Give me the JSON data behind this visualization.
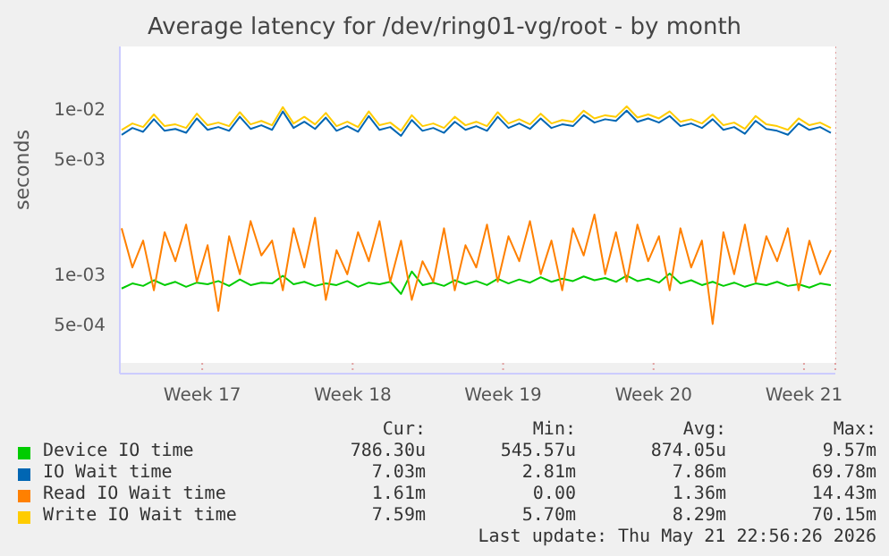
{
  "chart_data": {
    "type": "line",
    "title": "Average latency for /dev/ring01-vg/root - by month",
    "ylabel": "seconds",
    "log": "y",
    "grid": true,
    "legend": "bottom",
    "marker": "none",
    "line_style": "solid",
    "xlim": [
      "2026-04-18T16:00",
      "2026-05-21T23:00"
    ],
    "xticks": [
      {
        "value": "2026-04-22T12:00",
        "label": "Week 17"
      },
      {
        "value": "2026-04-29T12:00",
        "label": "Week 18"
      },
      {
        "value": "2026-05-06T12:00",
        "label": "Week 19"
      },
      {
        "value": "2026-05-13T12:00",
        "label": "Week 20"
      },
      {
        "value": "2026-05-20T12:00",
        "label": "Week 21"
      }
    ],
    "ylim": [
      0.00025,
      0.024
    ],
    "yticks": [
      {
        "value": 0.0005,
        "label": "5e-04"
      },
      {
        "value": 0.001,
        "label": "1e-03"
      },
      {
        "value": 0.005,
        "label": "5e-03"
      },
      {
        "value": 0.01,
        "label": "1e-02"
      }
    ],
    "x": [
      "2026-04-18T18:00",
      "2026-04-19T06:00",
      "2026-04-19T18:00",
      "2026-04-20T06:00",
      "2026-04-20T18:00",
      "2026-04-21T06:00",
      "2026-04-21T18:00",
      "2026-04-22T06:00",
      "2026-04-22T18:00",
      "2026-04-23T06:00",
      "2026-04-23T18:00",
      "2026-04-24T06:00",
      "2026-04-24T18:00",
      "2026-04-25T06:00",
      "2026-04-25T18:00",
      "2026-04-26T06:00",
      "2026-04-26T18:00",
      "2026-04-27T06:00",
      "2026-04-27T18:00",
      "2026-04-28T06:00",
      "2026-04-28T18:00",
      "2026-04-29T06:00",
      "2026-04-29T18:00",
      "2026-04-30T06:00",
      "2026-04-30T18:00",
      "2026-05-01T06:00",
      "2026-05-01T18:00",
      "2026-05-02T06:00",
      "2026-05-02T18:00",
      "2026-05-03T06:00",
      "2026-05-03T18:00",
      "2026-05-04T06:00",
      "2026-05-04T18:00",
      "2026-05-05T06:00",
      "2026-05-05T18:00",
      "2026-05-06T06:00",
      "2026-05-06T18:00",
      "2026-05-07T06:00",
      "2026-05-07T18:00",
      "2026-05-08T06:00",
      "2026-05-08T18:00",
      "2026-05-09T06:00",
      "2026-05-09T18:00",
      "2026-05-10T06:00",
      "2026-05-10T18:00",
      "2026-05-11T06:00",
      "2026-05-11T18:00",
      "2026-05-12T06:00",
      "2026-05-12T18:00",
      "2026-05-13T06:00",
      "2026-05-13T18:00",
      "2026-05-14T06:00",
      "2026-05-14T18:00",
      "2026-05-15T06:00",
      "2026-05-15T18:00",
      "2026-05-16T06:00",
      "2026-05-16T18:00",
      "2026-05-17T06:00",
      "2026-05-17T18:00",
      "2026-05-18T06:00",
      "2026-05-18T18:00",
      "2026-05-19T06:00",
      "2026-05-19T18:00",
      "2026-05-20T06:00",
      "2026-05-20T18:00",
      "2026-05-21T06:00",
      "2026-05-21T18:00"
    ],
    "series": [
      {
        "name": "Device IO time",
        "color": "#00cc00",
        "values": [
          0.00082,
          0.00088,
          0.00085,
          0.00092,
          0.00086,
          0.0009,
          0.00084,
          0.00089,
          0.00087,
          0.00091,
          0.00085,
          0.00093,
          0.00086,
          0.00089,
          0.00088,
          0.00098,
          0.00087,
          0.0009,
          0.00085,
          0.00088,
          0.00086,
          0.00091,
          0.00084,
          0.00089,
          0.00087,
          0.0009,
          0.00076,
          0.00104,
          0.00086,
          0.00089,
          0.00085,
          0.00092,
          0.00087,
          0.00091,
          0.00086,
          0.00094,
          0.00088,
          0.00093,
          0.00089,
          0.00096,
          0.0009,
          0.00094,
          0.00091,
          0.00097,
          0.00092,
          0.00095,
          0.0009,
          0.00098,
          0.00091,
          0.00094,
          0.00089,
          0.00101,
          0.00088,
          0.00092,
          0.00086,
          0.0009,
          0.00085,
          0.00089,
          0.00084,
          0.00088,
          0.00086,
          0.0009,
          0.00085,
          0.00087,
          0.00083,
          0.00088,
          0.00086
        ]
      },
      {
        "name": "IO Wait time",
        "color": "#0066b3",
        "values": [
          0.007,
          0.0077,
          0.0073,
          0.0087,
          0.0074,
          0.0076,
          0.0072,
          0.0088,
          0.0075,
          0.0078,
          0.0074,
          0.009,
          0.0076,
          0.008,
          0.0075,
          0.0097,
          0.0077,
          0.0084,
          0.0076,
          0.0089,
          0.0074,
          0.0079,
          0.0073,
          0.0091,
          0.0075,
          0.0078,
          0.0069,
          0.0086,
          0.0074,
          0.0077,
          0.0072,
          0.0084,
          0.0075,
          0.0079,
          0.0074,
          0.009,
          0.0077,
          0.0082,
          0.0076,
          0.0088,
          0.0077,
          0.0081,
          0.0079,
          0.0092,
          0.0083,
          0.0087,
          0.0085,
          0.0098,
          0.0084,
          0.0088,
          0.0083,
          0.0091,
          0.0079,
          0.0082,
          0.0077,
          0.0087,
          0.0075,
          0.0078,
          0.0071,
          0.0085,
          0.0076,
          0.0074,
          0.007,
          0.0082,
          0.0075,
          0.0078,
          0.0072
        ]
      },
      {
        "name": "Read IO Wait time",
        "color": "#ff8000",
        "values": [
          0.0019,
          0.0011,
          0.0016,
          0.0008,
          0.0018,
          0.0012,
          0.002,
          0.0009,
          0.0015,
          0.0006,
          0.0017,
          0.001,
          0.0021,
          0.0013,
          0.0016,
          0.0008,
          0.0019,
          0.0011,
          0.0022,
          0.0007,
          0.0014,
          0.001,
          0.0018,
          0.0012,
          0.0021,
          0.0009,
          0.0016,
          0.0007,
          0.0012,
          0.0009,
          0.0019,
          0.0008,
          0.0015,
          0.0011,
          0.002,
          0.0009,
          0.0017,
          0.0012,
          0.0021,
          0.001,
          0.0016,
          0.0008,
          0.0019,
          0.0013,
          0.0023,
          0.001,
          0.0018,
          0.0009,
          0.002,
          0.0012,
          0.0017,
          0.0008,
          0.0019,
          0.0011,
          0.0016,
          0.0005,
          0.0018,
          0.001,
          0.002,
          0.0009,
          0.0017,
          0.0012,
          0.0019,
          0.0008,
          0.0016,
          0.001,
          0.0014
        ]
      },
      {
        "name": "Write IO Wait time",
        "color": "#ffcc00",
        "values": [
          0.0075,
          0.0082,
          0.0078,
          0.0093,
          0.0079,
          0.0081,
          0.0077,
          0.0094,
          0.008,
          0.0083,
          0.0079,
          0.0096,
          0.0081,
          0.0085,
          0.008,
          0.0103,
          0.0082,
          0.009,
          0.0081,
          0.0095,
          0.0079,
          0.0084,
          0.0078,
          0.0097,
          0.008,
          0.0083,
          0.0074,
          0.0092,
          0.0079,
          0.0082,
          0.0077,
          0.009,
          0.008,
          0.0084,
          0.0079,
          0.0096,
          0.0082,
          0.0087,
          0.0081,
          0.0094,
          0.0082,
          0.0086,
          0.0084,
          0.0098,
          0.0088,
          0.0092,
          0.009,
          0.0104,
          0.0089,
          0.0093,
          0.0088,
          0.0097,
          0.0084,
          0.0087,
          0.0082,
          0.0093,
          0.008,
          0.0083,
          0.0076,
          0.0091,
          0.0081,
          0.0079,
          0.0075,
          0.0088,
          0.008,
          0.0083,
          0.0077
        ]
      }
    ],
    "annotations": [
      "Cur:",
      "Min:",
      "Avg:",
      "Max:",
      "786.30u",
      "545.57u",
      "874.05u",
      "9.57m",
      "7.03m",
      "2.81m",
      "7.86m",
      "69.78m",
      "1.61m",
      "0.00",
      "1.36m",
      "14.43m",
      "7.59m",
      "5.70m",
      "8.29m",
      "70.15m",
      "Last update: Thu May 21 22:56:26 2026"
    ]
  }
}
